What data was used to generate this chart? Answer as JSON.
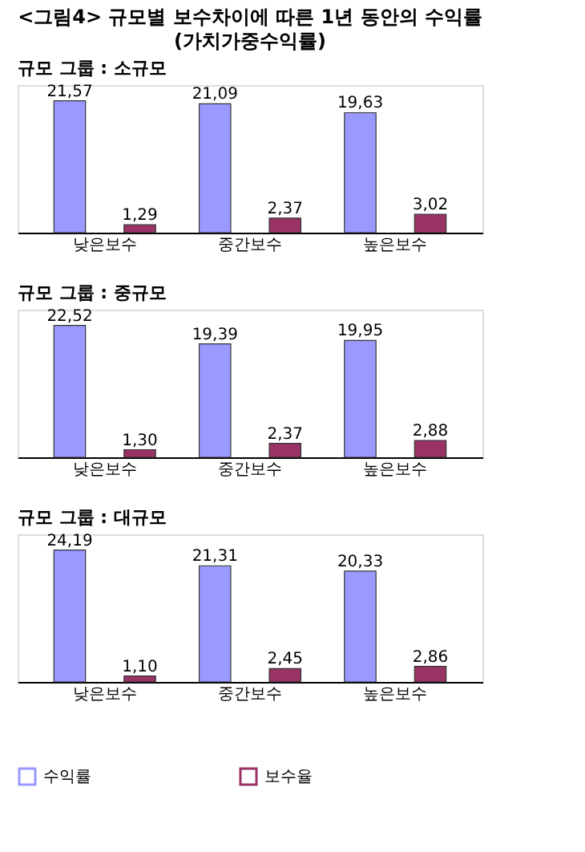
{
  "chart_data": [
    {
      "type": "bar",
      "title": "<그림4> 규모별 보수차이에 따른 1년 동안의 수익률",
      "subtitle": "(가치가중수익률)",
      "categories": [
        "낮은보수",
        "중간보수",
        "높은보수"
      ],
      "legend": "bottom",
      "series": [
        {
          "name": "수익률",
          "color": "#9999ff",
          "values": [
            21.57,
            21.09,
            19.63
          ],
          "value_labels": [
            "21,57",
            "21,09",
            "19,63"
          ]
        },
        {
          "name": "보수율",
          "color": "#993366",
          "values": [
            1.29,
            2.37,
            3.02
          ],
          "value_labels": [
            "1,29",
            "2,37",
            "3,02"
          ]
        }
      ],
      "annotations": [
        "규모 그룹 : 소규모"
      ]
    },
    {
      "type": "bar",
      "categories": [
        "낮은보수",
        "중간보수",
        "높은보수"
      ],
      "legend": false,
      "series": [
        {
          "color": "#9999ff",
          "values": [
            22.52,
            19.39,
            19.95
          ],
          "value_labels": [
            "22,52",
            "19,39",
            "19,95"
          ]
        },
        {
          "color": "#993366",
          "values": [
            1.3,
            2.37,
            2.88
          ],
          "value_labels": [
            "1,30",
            "2,37",
            "2,88"
          ]
        }
      ],
      "annotations": [
        "규모 그룹 : 중규모"
      ]
    },
    {
      "type": "bar",
      "categories": [
        "낮은보수",
        "중간보수",
        "높은보수"
      ],
      "legend": false,
      "series": [
        {
          "color": "#9999ff",
          "values": [
            24.19,
            21.31,
            20.33
          ],
          "value_labels": [
            "24,19",
            "21,31",
            "20,33"
          ]
        },
        {
          "color": "#993366",
          "values": [
            1.1,
            2.45,
            2.86
          ],
          "value_labels": [
            "1,10",
            "2,45",
            "2,86"
          ]
        }
      ],
      "annotations": [
        "규모 그룹 : 대규모"
      ]
    }
  ]
}
